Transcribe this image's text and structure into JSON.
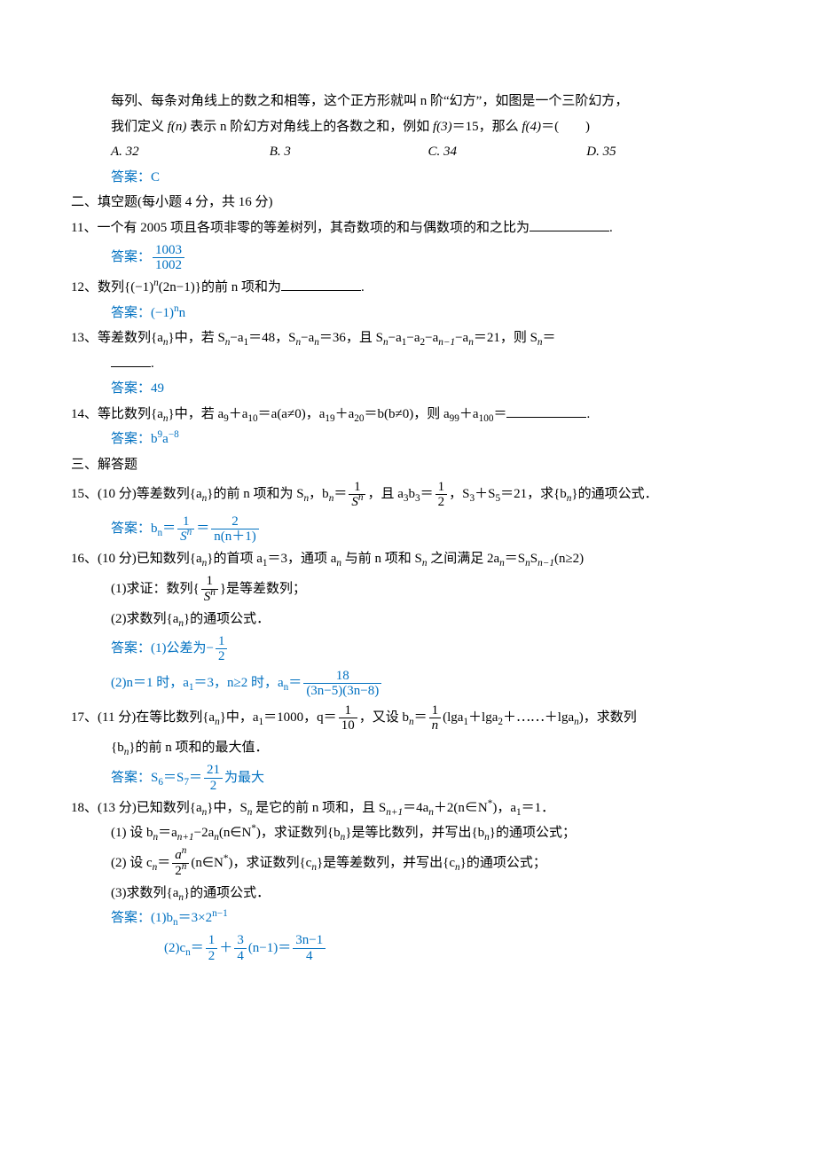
{
  "q10_cont": {
    "line1": "每列、每条对角线上的数之和相等，这个正方形就叫 n 阶“幻方”，如图是一个三阶幻方，",
    "line2_a": "我们定义 ",
    "line2_b": " 表示 n 阶幻方对角线上的各数之和，例如 ",
    "line2_c": "＝15，那么 ",
    "line2_d": "＝(　　)",
    "fn": "f(n)",
    "f3": "f(3)",
    "f4": "f(4)",
    "choice_A": "A. 32",
    "choice_B": "B. 3",
    "choice_C": "C. 34",
    "choice_D": "D. 35",
    "ans_prefix": "答案：",
    "ans": "C"
  },
  "section2": "二、填空题(每小题 4 分，共 16 分)",
  "q11": {
    "num": "11、",
    "text": "一个有 2005 项且各项非零的等差树列，其奇数项的和与偶数项的和之比为",
    "ans_prefix": "答案：",
    "ans_num": "1003",
    "ans_den": "1002",
    "dot": "."
  },
  "q12": {
    "num": "12、",
    "text_a": "数列{(−1)",
    "text_b": "(2n−1)}的前 n 项和为",
    "exp": "n",
    "ans_prefix": "答案：",
    "ans_a": "(−1)",
    "ans_exp": "n",
    "ans_b": "n",
    "dot": "."
  },
  "q13": {
    "num": "13、",
    "text_a": "等差数列{a",
    "text_b": "}中，若 S",
    "text_c": "−a",
    "text_d": "＝48，S",
    "text_e": "−a",
    "text_f": "＝36，且 S",
    "text_g": "−a",
    "text_h": "−a",
    "text_i": "−a",
    "text_j": "−a",
    "text_k": "＝21，则 S",
    "text_l": "＝",
    "sub_n": "n",
    "sub_1": "1",
    "sub_2": "2",
    "sub_nm1": "n−1",
    "dot": ".",
    "ans_prefix": "答案：",
    "ans": "49"
  },
  "q14": {
    "num": "14、",
    "text_a": "等比数列{a",
    "text_b": "}中，若 a",
    "text_c": "＋a",
    "text_d": "＝a(a≠0)，a",
    "text_e": "＋a",
    "text_f": "＝b(b≠0)，则 a",
    "text_g": "＋a",
    "text_h": "＝",
    "sub_n": "n",
    "s9": "9",
    "s10": "10",
    "s19": "19",
    "s20": "20",
    "s99": "99",
    "s100": "100",
    "dot": ".",
    "ans_prefix": "答案：",
    "ans_a": "b",
    "ans_exp1": "9",
    "ans_b": "a",
    "ans_exp2": "−8"
  },
  "section3": "三、解答题",
  "q15": {
    "num": "15、",
    "text_a": "(10 分)等差数列{a",
    "text_b": "}的前 n 项和为 S",
    "text_c": "，b",
    "text_d": "＝",
    "frac1_num": "1",
    "frac1_den_a": "S",
    "frac1_den_b": "n",
    "text_e": "，且 a",
    "text_f": "b",
    "text_g": "＝",
    "frac2_num": "1",
    "frac2_den": "2",
    "text_h": "，S",
    "text_i": "＋S",
    "text_j": "＝21，求{b",
    "text_k": "}的通项公式．",
    "sub_n": "n",
    "sub_3": "3",
    "sub_5": "5",
    "ans_prefix": "答案：",
    "ans_a": "b",
    "ans_sub": "n",
    "ans_b": "＝",
    "ans_f1_num": "1",
    "ans_f1_den_a": "S",
    "ans_f1_den_b": "n",
    "ans_c": "＝",
    "ans_f2_num": "2",
    "ans_f2_den": "n(n＋1)"
  },
  "q16": {
    "num": "16、",
    "text_a": "(10 分)已知数列{a",
    "text_b": "}的首项 a",
    "text_c": "＝3，通项 a",
    "text_d": " 与前 n 项和 S",
    "text_e": " 之间满足 2a",
    "text_f": "＝S",
    "text_g": "S",
    "text_h": "(n≥2)",
    "sub_n": "n",
    "sub_1": "1",
    "sub_nm1": "n−1",
    "p1_a": "(1)求证：数列{",
    "p1_f_num": "1",
    "p1_f_den_a": "S",
    "p1_f_den_b": "n",
    "p1_b": "}是等差数列；",
    "p2": "(2)求数列{a",
    "p2_b": "}的通项公式．",
    "ans_prefix": "答案：",
    "ans1_a": "(1)公差为−",
    "ans1_num": "1",
    "ans1_den": "2",
    "ans2_a": "(2)n＝1 时，a",
    "ans2_b": "＝3，n≥2 时，a",
    "ans2_c": "＝",
    "ans2_num": "18",
    "ans2_den": "(3n−5)(3n−8)"
  },
  "q17": {
    "num": "17、",
    "text_a": "(11 分)在等比数列{a",
    "text_b": "}中，a",
    "text_c": "＝1000，q＝",
    "f1_num": "1",
    "f1_den": "10",
    "text_d": "，又设 b",
    "text_e": "＝",
    "f2_num": "1",
    "f2_den": "n",
    "text_f": "(lga",
    "text_g": "＋lga",
    "text_h": "＋⋯⋯＋lga",
    "text_i": ")，求数列",
    "sub_n": "n",
    "sub_1": "1",
    "sub_2": "2",
    "line2_a": "{b",
    "line2_b": "}的前 n 项和的最大值．",
    "ans_prefix": "答案：",
    "ans_a": "S",
    "ans_s6": "6",
    "ans_b": "＝S",
    "ans_s7": "7",
    "ans_c": "＝",
    "ans_num": "21",
    "ans_den": "2",
    "ans_d": "为最大"
  },
  "q18": {
    "num": "18、",
    "text_a": "(13 分)已知数列{a",
    "text_b": "}中，S",
    "text_c": " 是它的前 n 项和，且 S",
    "text_d": "＝4a",
    "text_e": "＋2(n∈N",
    "text_f": ")，a",
    "text_g": "＝1．",
    "sub_n": "n",
    "sub_np1": "n+1",
    "sub_1": "1",
    "sup_star": "*",
    "p1_a": "(1) 设 b",
    "p1_b": "＝a",
    "p1_c": "−2a",
    "p1_d": "(n∈N",
    "p1_e": ")，求证数列{b",
    "p1_f": "}是等比数列，并写出{b",
    "p1_g": "}的通项公式；",
    "p2_a": "(2) 设 c",
    "p2_b": "＝",
    "p2_num_a": "a",
    "p2_num_b": "n",
    "p2_den_a": "2",
    "p2_den_b": "n",
    "p2_c": "(n∈N",
    "p2_d": ")，求证数列{c",
    "p2_e": "}是等差数列，并写出{c",
    "p2_f": "}的通项公式；",
    "p3_a": "(3)求数列{a",
    "p3_b": "}的通项公式．",
    "ans_prefix": "答案：",
    "ans1_a": "(1)b",
    "ans1_b": "＝3×2",
    "ans1_exp": "n−1",
    "ans2_a": "(2)c",
    "ans2_b": "＝",
    "ans2_f1_num": "1",
    "ans2_f1_den": "2",
    "ans2_c": "＋",
    "ans2_f2_num": "3",
    "ans2_f2_den": "4",
    "ans2_d": "(n−1)＝",
    "ans2_f3_num": "3n−1",
    "ans2_f3_den": "4"
  }
}
